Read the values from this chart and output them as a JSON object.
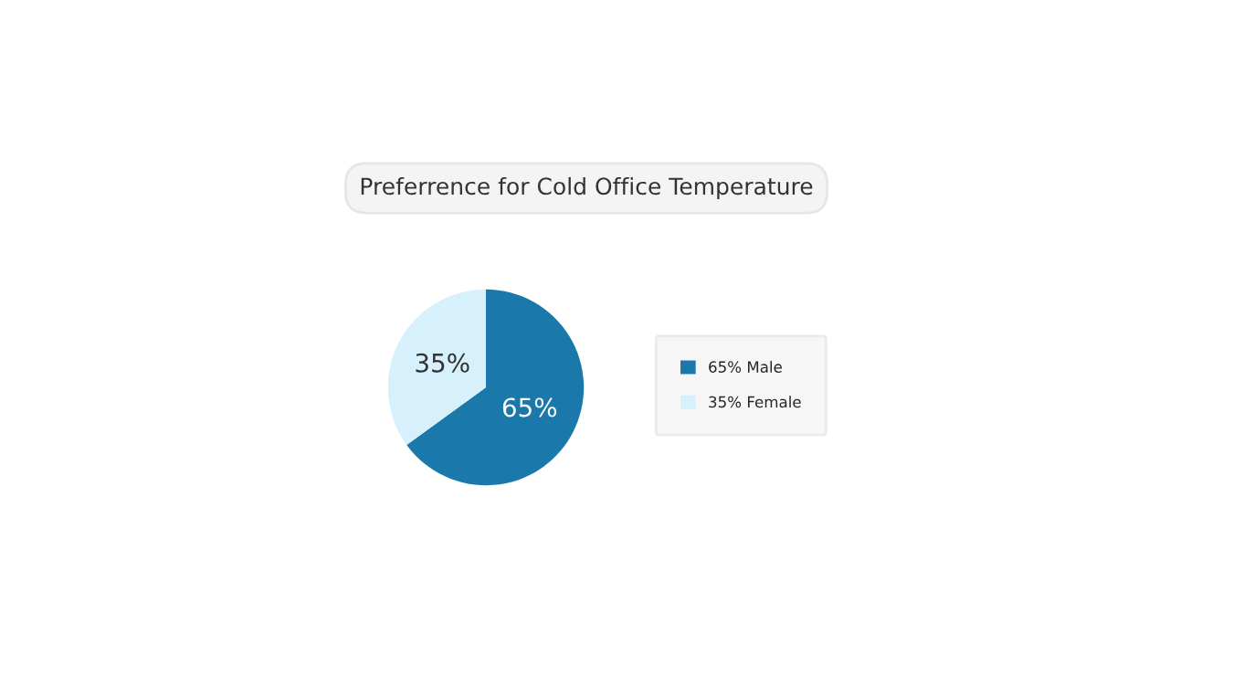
{
  "chart_data": {
    "type": "pie",
    "title": "Preferrence for Cold Office Temperature",
    "categories": [
      "65% Male",
      "35% Female"
    ],
    "values": [
      65,
      35
    ],
    "colors": [
      "#1a78ab",
      "#d6f0fc"
    ],
    "value_labels": [
      "65%",
      "35%"
    ],
    "legend": "right"
  }
}
